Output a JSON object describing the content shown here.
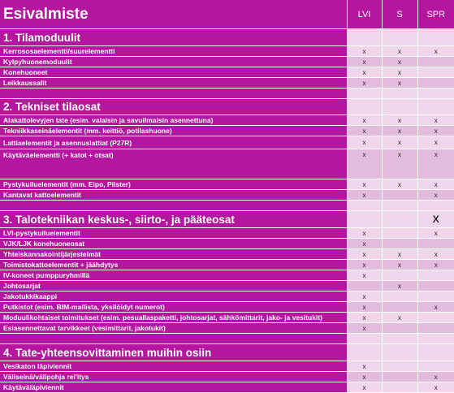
{
  "header": {
    "title": "Esivalmiste",
    "columns": [
      "LVI",
      "S",
      "SPR"
    ]
  },
  "rows": [
    {
      "kind": "sec",
      "label": "1. Tilamoduulit",
      "h": 20,
      "marks": [
        "",
        "",
        ""
      ]
    },
    {
      "kind": "row",
      "label": "Kerrososaelementti/suurelementti",
      "h": 12,
      "marks": [
        "x",
        "x",
        "x"
      ]
    },
    {
      "kind": "row",
      "label": "Kylpyhuonemoduulit",
      "h": 12,
      "marks": [
        "x",
        "x",
        ""
      ]
    },
    {
      "kind": "row",
      "label": "Konehuoneet",
      "h": 12,
      "marks": [
        "x",
        "x",
        ""
      ]
    },
    {
      "kind": "row",
      "label": "Leikkaussalit",
      "h": 12,
      "marks": [
        "x",
        "x",
        ""
      ]
    },
    {
      "kind": "row",
      "label": "",
      "h": 12,
      "marks": [
        "",
        "",
        ""
      ]
    },
    {
      "kind": "sec",
      "label": "2. Tekniset tilaosat",
      "h": 19,
      "marks": [
        "",
        "",
        ""
      ]
    },
    {
      "kind": "row",
      "label": "Alakattolevyjen tate (esim. valaisin ja savuilmaisin asennettuna)",
      "h": 12,
      "marks": [
        "x",
        "x",
        "x"
      ]
    },
    {
      "kind": "row",
      "label": "Tekniikkaseinäelementit (mm. keittiö, potilashuone)",
      "h": 12,
      "marks": [
        "x",
        "x",
        "x"
      ]
    },
    {
      "kind": "row",
      "label": "Lattiaelementit ja asennuslattiat (P27R)",
      "h": 15,
      "marks": [
        "x",
        "x",
        "x"
      ]
    },
    {
      "kind": "row",
      "label": "Käytäväelementti (+ katot + otsat)",
      "h": 34,
      "marks": [
        "x",
        "x",
        "x"
      ],
      "tall": true
    },
    {
      "kind": "row",
      "label": "Pystykuiluelementit (mm. Elpo, Pilster)",
      "h": 12,
      "marks": [
        "x",
        "x",
        "x"
      ]
    },
    {
      "kind": "row",
      "label": "Kantavat kattoelementit",
      "h": 12,
      "marks": [
        "x",
        "",
        "x"
      ]
    },
    {
      "kind": "row",
      "label": "",
      "h": 12,
      "marks": [
        "",
        "",
        ""
      ]
    },
    {
      "kind": "sec",
      "label": "3. Talotekniikan keskus-, siirto-, ja pääteosat",
      "h": 20,
      "marks": [
        "",
        "",
        "x"
      ]
    },
    {
      "kind": "row",
      "label": "LVI-pystykuiluelementit",
      "h": 12,
      "marks": [
        "x",
        "",
        "x"
      ]
    },
    {
      "kind": "row",
      "label": "VJK/LJK konehuoneosat",
      "h": 12,
      "marks": [
        "x",
        "",
        ""
      ]
    },
    {
      "kind": "row",
      "label": "Yhteiskannakointijärjestelmät",
      "h": 12,
      "marks": [
        "x",
        "x",
        "x"
      ]
    },
    {
      "kind": "row",
      "label": "Toimistokattoelementit + jäähdytys",
      "h": 12,
      "marks": [
        "x",
        "x",
        "x"
      ]
    },
    {
      "kind": "row",
      "label": "IV-koneet pumppuryhmillä",
      "h": 12,
      "marks": [
        "x",
        "",
        ""
      ]
    },
    {
      "kind": "row",
      "label": "Johtosarjat",
      "h": 12,
      "marks": [
        "",
        "x",
        ""
      ]
    },
    {
      "kind": "row",
      "label": "Jakotukkikaappi",
      "h": 12,
      "marks": [
        "x",
        "",
        ""
      ]
    },
    {
      "kind": "row",
      "label": "Putkistot (esim. BIM-mallista, yksilöidyt numerot)",
      "h": 12,
      "marks": [
        "x",
        "",
        "x"
      ]
    },
    {
      "kind": "row",
      "label": "Moduulikohtaiset toimitukset (esim. pesuallaspaketti, johtosarjat, sähkömittarit, jako- ja vesitukit)",
      "h": 12,
      "marks": [
        "x",
        "x",
        ""
      ]
    },
    {
      "kind": "row",
      "label": "Esiasennettavat tarvikkeet (vesimittarit, jakotukit)",
      "h": 12,
      "marks": [
        "x",
        "",
        ""
      ]
    },
    {
      "kind": "row",
      "label": "",
      "h": 12,
      "marks": [
        "",
        "",
        ""
      ]
    },
    {
      "kind": "sec",
      "label": "4. Tate-yhteensovittaminen muihin osiin",
      "h": 20,
      "marks": [
        "",
        "",
        ""
      ]
    },
    {
      "kind": "row",
      "label": "Vesikaton läpiviennit",
      "h": 12,
      "marks": [
        "x",
        "",
        ""
      ]
    },
    {
      "kind": "row",
      "label": "Väliseinä/välipohja rei'itys",
      "h": 12,
      "marks": [
        "x",
        "",
        "x"
      ]
    },
    {
      "kind": "row",
      "label": "Käytäväläpiviennit",
      "h": 12,
      "marks": [
        "x",
        "",
        "x"
      ]
    }
  ]
}
